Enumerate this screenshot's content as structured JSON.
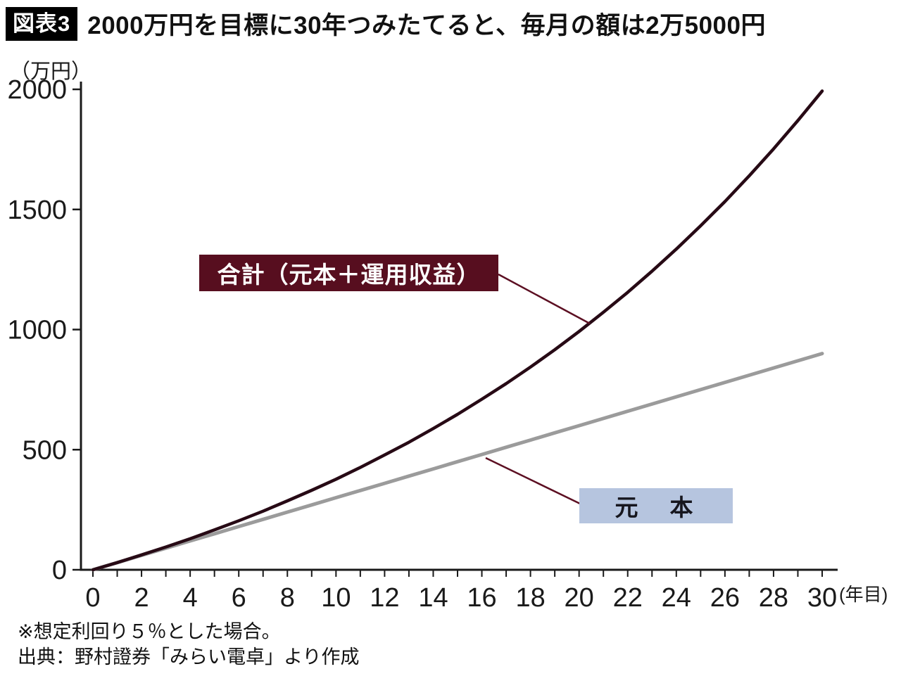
{
  "header": {
    "badge": "図表3",
    "title": "2000万円を目標に30年つみたてると、毎月の額は2万5000円"
  },
  "chart_data": {
    "type": "line",
    "title": "2000万円を目標に30年つみたてると、毎月の額は2万5000円",
    "x_label_unit": "(年目)",
    "y_label_unit": "（万円）",
    "x": [
      0,
      1,
      2,
      3,
      4,
      5,
      6,
      7,
      8,
      9,
      10,
      11,
      12,
      13,
      14,
      15,
      16,
      17,
      18,
      19,
      20,
      21,
      22,
      23,
      24,
      25,
      26,
      27,
      28,
      29,
      30
    ],
    "series": [
      {
        "name": "合計（元本＋運用収益）",
        "color": "#270a15",
        "width": 4.5,
        "values": [
          0,
          30,
          62,
          95,
          129,
          166,
          204,
          244,
          287,
          331,
          377,
          426,
          478,
          531,
          588,
          647,
          710,
          775,
          844,
          916,
          992,
          1072,
          1155,
          1243,
          1335,
          1432,
          1533,
          1640,
          1752,
          1870,
          1993
        ]
      },
      {
        "name": "元本",
        "color": "#9b9b9b",
        "width": 5,
        "values": [
          0,
          30,
          60,
          90,
          120,
          150,
          180,
          210,
          240,
          270,
          300,
          330,
          360,
          390,
          420,
          450,
          480,
          510,
          540,
          570,
          600,
          630,
          660,
          690,
          720,
          750,
          780,
          810,
          840,
          870,
          900
        ]
      }
    ],
    "xticks": [
      0,
      2,
      4,
      6,
      8,
      10,
      12,
      14,
      16,
      18,
      20,
      22,
      24,
      26,
      28,
      30
    ],
    "yticks": [
      0,
      500,
      1000,
      1500,
      2000
    ],
    "xlim": [
      0,
      30
    ],
    "ylim": [
      0,
      2000
    ],
    "grid": false,
    "legend_position": "none",
    "annotations": [
      {
        "text": "合計（元本＋運用収益）",
        "target_series": "合計（元本＋運用収益）"
      },
      {
        "text": "元　本",
        "target_series": "元本"
      }
    ],
    "assumption_note": "想定利回り５％",
    "monthly_amount": "2万5000円",
    "goal": "2000万円",
    "years": 30
  },
  "footnotes": [
    "※想定利回り５％とした場合。",
    "出典：野村證券「みらい電卓」より作成"
  ],
  "colors": {
    "total_line": "#270a15",
    "principal_line": "#9b9b9b",
    "total_label_bg": "#570e1f",
    "principal_label_bg": "#b6c5df",
    "leader_line": "#5c0f22",
    "axis": "#1a1a1a",
    "badge_bg": "#000000"
  }
}
